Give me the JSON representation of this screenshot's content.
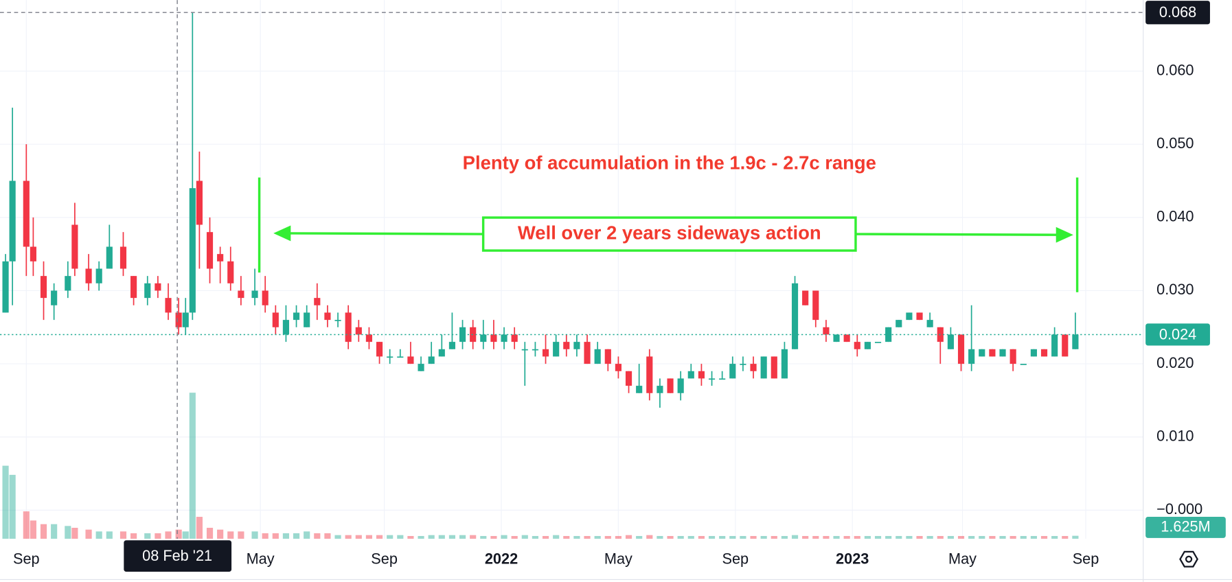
{
  "chart_data": {
    "type": "candlestick",
    "annotations": [
      "Plenty of accumulation in the 1.9c - 2.7c range",
      "Well over 2 years sideways action"
    ],
    "x": [
      -3,
      -2,
      0,
      1,
      2.5,
      4,
      6,
      7,
      9,
      10.5,
      12,
      14,
      15.5,
      17.5,
      19,
      20.5,
      22,
      23,
      24,
      25,
      26.5,
      28,
      29.5,
      31,
      33,
      34.5,
      36,
      37.5,
      39,
      40.5,
      42,
      43.5,
      45,
      46.5,
      48,
      49.5,
      51,
      52.5,
      54,
      55.5,
      57,
      58.5,
      60,
      61.5,
      63,
      64.5,
      66,
      67.5,
      69,
      70.5,
      72,
      73.5,
      75,
      76.5,
      78,
      79.5,
      81,
      82.5,
      84,
      85.5,
      87,
      88.5,
      90,
      91.5,
      93,
      94.5,
      96,
      97.5,
      99,
      100.5,
      102,
      103.5,
      105,
      106.5,
      108,
      109.5,
      111,
      112.5,
      114,
      115.5,
      117,
      118.5,
      120,
      121.5,
      123,
      124.5,
      126,
      127.5,
      129,
      130.5,
      132,
      133.5,
      135,
      136.5,
      138,
      139.5,
      141,
      142.5,
      144,
      145.5,
      147,
      148.5,
      150,
      151.5
    ],
    "open": [
      0.027,
      0.034,
      0.045,
      0.036,
      0.032,
      0.028,
      0.03,
      0.039,
      0.033,
      0.031,
      0.033,
      0.036,
      0.032,
      0.029,
      0.031,
      0.029,
      0.027,
      0.025,
      0.027,
      0.045,
      0.038,
      0.035,
      0.034,
      0.03,
      0.029,
      0.03,
      0.027,
      0.024,
      0.026,
      0.025,
      0.029,
      0.027,
      0.026,
      0.027,
      0.025,
      0.024,
      0.023,
      0.021,
      0.021,
      0.021,
      0.019,
      0.02,
      0.021,
      0.022,
      0.023,
      0.025,
      0.023,
      0.024,
      0.023,
      0.024,
      0.022,
      0.022,
      0.022,
      0.021,
      0.023,
      0.022,
      0.023,
      0.02,
      0.022,
      0.02,
      0.019,
      0.016,
      0.021,
      0.016,
      0.018,
      0.016,
      0.018,
      0.019,
      0.018,
      0.018,
      0.018,
      0.02,
      0.02,
      0.018,
      0.021,
      0.018,
      0.022,
      0.03,
      0.03,
      0.025,
      0.023,
      0.024,
      0.023,
      0.022,
      0.023,
      0.023,
      0.025,
      0.026,
      0.027,
      0.025,
      0.025,
      0.022,
      0.024,
      0.02,
      0.021,
      0.022,
      0.021,
      0.022,
      0.02,
      0.021,
      0.022,
      0.021,
      0.024,
      0.022
    ],
    "high": [
      0.035,
      0.055,
      0.05,
      0.04,
      0.034,
      0.031,
      0.034,
      0.042,
      0.035,
      0.034,
      0.039,
      0.038,
      0.032,
      0.032,
      0.032,
      0.031,
      0.029,
      0.029,
      0.068,
      0.049,
      0.04,
      0.036,
      0.036,
      0.032,
      0.033,
      0.032,
      0.028,
      0.028,
      0.028,
      0.028,
      0.031,
      0.028,
      0.027,
      0.028,
      0.026,
      0.025,
      0.023,
      0.022,
      0.022,
      0.023,
      0.021,
      0.023,
      0.024,
      0.027,
      0.026,
      0.026,
      0.026,
      0.026,
      0.025,
      0.025,
      0.023,
      0.023,
      0.024,
      0.024,
      0.024,
      0.024,
      0.024,
      0.023,
      0.022,
      0.021,
      0.019,
      0.02,
      0.022,
      0.018,
      0.018,
      0.019,
      0.02,
      0.02,
      0.019,
      0.019,
      0.021,
      0.021,
      0.021,
      0.021,
      0.021,
      0.023,
      0.032,
      0.03,
      0.03,
      0.026,
      0.024,
      0.024,
      0.024,
      0.023,
      0.023,
      0.025,
      0.026,
      0.027,
      0.027,
      0.027,
      0.025,
      0.025,
      0.024,
      0.028,
      0.022,
      0.022,
      0.022,
      0.022,
      0.02,
      0.022,
      0.022,
      0.025,
      0.024,
      0.027
    ],
    "low": [
      0.027,
      0.028,
      0.032,
      0.032,
      0.026,
      0.026,
      0.029,
      0.032,
      0.03,
      0.03,
      0.033,
      0.032,
      0.028,
      0.028,
      0.029,
      0.026,
      0.024,
      0.024,
      0.026,
      0.033,
      0.031,
      0.031,
      0.03,
      0.028,
      0.028,
      0.027,
      0.024,
      0.023,
      0.025,
      0.025,
      0.026,
      0.025,
      0.025,
      0.022,
      0.023,
      0.022,
      0.02,
      0.02,
      0.021,
      0.02,
      0.019,
      0.02,
      0.021,
      0.022,
      0.022,
      0.022,
      0.022,
      0.022,
      0.022,
      0.022,
      0.017,
      0.021,
      0.02,
      0.021,
      0.021,
      0.021,
      0.02,
      0.02,
      0.019,
      0.018,
      0.016,
      0.016,
      0.015,
      0.014,
      0.016,
      0.015,
      0.018,
      0.017,
      0.017,
      0.018,
      0.018,
      0.019,
      0.018,
      0.018,
      0.018,
      0.018,
      0.022,
      0.028,
      0.025,
      0.023,
      0.023,
      0.023,
      0.021,
      0.022,
      0.023,
      0.023,
      0.025,
      0.026,
      0.026,
      0.025,
      0.02,
      0.022,
      0.019,
      0.019,
      0.021,
      0.021,
      0.021,
      0.019,
      0.02,
      0.021,
      0.021,
      0.021,
      0.021,
      0.022
    ],
    "close": [
      0.034,
      0.045,
      0.036,
      0.034,
      0.029,
      0.03,
      0.032,
      0.033,
      0.031,
      0.033,
      0.036,
      0.033,
      0.029,
      0.031,
      0.03,
      0.027,
      0.025,
      0.027,
      0.044,
      0.039,
      0.033,
      0.034,
      0.031,
      0.029,
      0.03,
      0.028,
      0.025,
      0.026,
      0.027,
      0.027,
      0.028,
      0.026,
      0.026,
      0.023,
      0.024,
      0.023,
      0.021,
      0.021,
      0.021,
      0.02,
      0.02,
      0.021,
      0.022,
      0.023,
      0.025,
      0.023,
      0.024,
      0.023,
      0.024,
      0.023,
      0.022,
      0.022,
      0.021,
      0.023,
      0.022,
      0.023,
      0.02,
      0.022,
      0.02,
      0.019,
      0.017,
      0.017,
      0.016,
      0.017,
      0.016,
      0.018,
      0.019,
      0.018,
      0.018,
      0.018,
      0.02,
      0.02,
      0.019,
      0.021,
      0.018,
      0.022,
      0.031,
      0.028,
      0.026,
      0.024,
      0.024,
      0.023,
      0.022,
      0.023,
      0.023,
      0.025,
      0.026,
      0.027,
      0.026,
      0.026,
      0.023,
      0.024,
      0.02,
      0.022,
      0.022,
      0.021,
      0.022,
      0.02,
      0.02,
      0.022,
      0.021,
      0.024,
      0.021,
      0.024
    ],
    "up_color": "#22ab94",
    "down_color": "#f23645",
    "volume": {
      "values": [
        40,
        35,
        15,
        10,
        8,
        8,
        7,
        6,
        5,
        4,
        4,
        4,
        3,
        3,
        3,
        4,
        5,
        4,
        80,
        12,
        6,
        5,
        4,
        4,
        4,
        3,
        3,
        3,
        3,
        4,
        3,
        3,
        2,
        2,
        2,
        2,
        2,
        2,
        2,
        1.5,
        1.5,
        2,
        2,
        2,
        2,
        2,
        1.5,
        1.5,
        2,
        1.5,
        2,
        1.5,
        1.5,
        2,
        1.5,
        1.5,
        1.5,
        1.5,
        1.5,
        1.5,
        2,
        1.5,
        2,
        1.5,
        1.5,
        1.5,
        1.5,
        1.5,
        1.5,
        1.5,
        1.5,
        1.5,
        1.5,
        1.5,
        1.5,
        1.5,
        2,
        1.5,
        1.5,
        1.5,
        1.5,
        1.5,
        1.5,
        1.5,
        1.5,
        1.5,
        1.5,
        1.5,
        1.5,
        1.5,
        1.5,
        1.5,
        1.5,
        1.5,
        1.5,
        1.5,
        1.5,
        1.5,
        1.5,
        1.5,
        1.5,
        1.5,
        1.5,
        1.625
      ],
      "last_label": "1.625M"
    },
    "last_price": 0.024,
    "crosshair": {
      "price": 0.068,
      "date_label": "08 Feb '21",
      "x": 21.8
    },
    "xlim": [
      -3.8,
      161.3
    ],
    "xticks": [
      {
        "value": 0,
        "label": "Sep"
      },
      {
        "value": 33.8,
        "label": "May"
      },
      {
        "value": 51.7,
        "label": "Sep"
      },
      {
        "value": 68.6,
        "label": "2022"
      },
      {
        "value": 85.5,
        "label": "May"
      },
      {
        "value": 102.4,
        "label": "Sep"
      },
      {
        "value": 119.3,
        "label": "2023"
      },
      {
        "value": 135.2,
        "label": "May"
      },
      {
        "value": 153.0,
        "label": "Sep"
      }
    ],
    "ylim": [
      -0.0039,
      0.0697
    ],
    "yticks": [
      {
        "value": 0,
        "label": "−0.000"
      },
      {
        "value": 0.01,
        "label": "0.010"
      },
      {
        "value": 0.02,
        "label": "0.020"
      },
      {
        "value": 0.03,
        "label": "0.030"
      },
      {
        "value": 0.04,
        "label": "0.040"
      },
      {
        "value": 0.05,
        "label": "0.050"
      },
      {
        "value": 0.06,
        "label": "0.060"
      }
    ],
    "grid": true
  }
}
